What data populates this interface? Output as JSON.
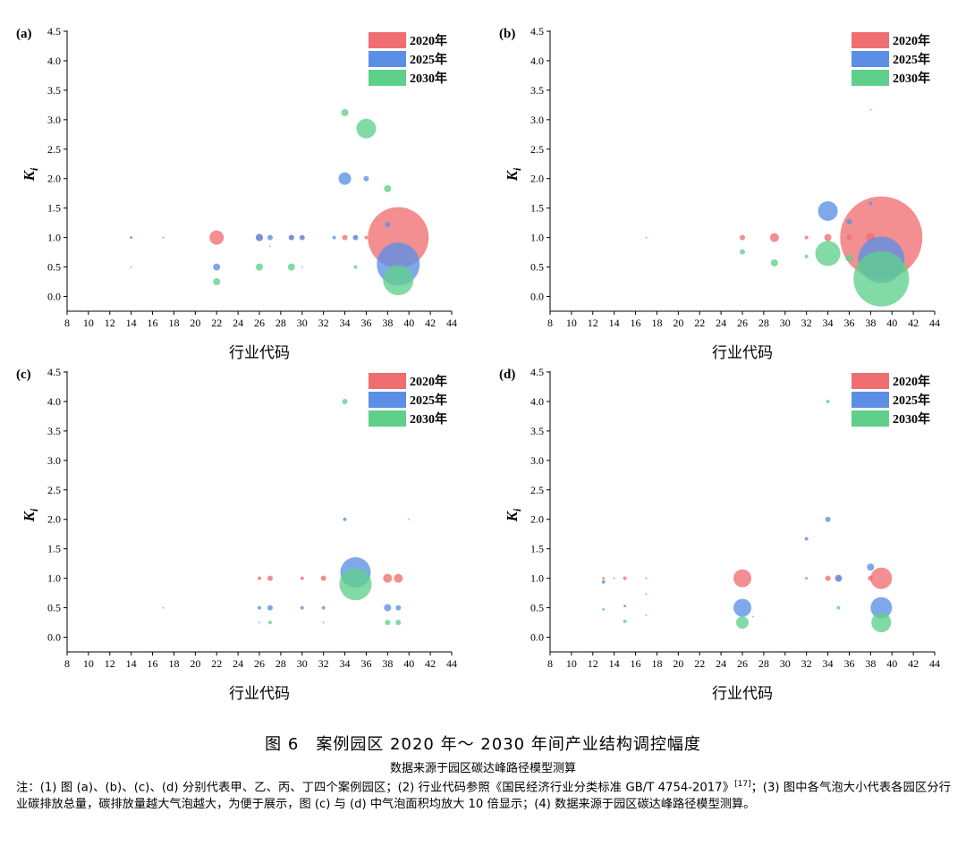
{
  "figure": {
    "title": "图 6　案例园区 2020 年～ 2030 年间产业结构调控幅度",
    "subtitle": "数据来源于园区碳达峰路径模型测算",
    "note_before_ref": "注：(1) 图 (a)、(b)、(c)、(d) 分别代表甲、乙、丙、丁四个案例园区；(2) 行业代码参照《国民经济行业分类标准 GB/T 4754-2017》",
    "note_ref": "[17]",
    "note_after_ref": "；(3) 图中各气泡大小代表各园区分行业碳排放总量，碳排放量越大气泡越大，为便于展示，图 (c) 与 (d) 中气泡面积均放大 10 倍显示；(4) 数据来源于园区碳达峰路径模型测算。"
  },
  "colors": {
    "2020": "#f06e72",
    "2025": "#5b8fe6",
    "2030": "#5fcf8c"
  },
  "chart_data": [
    {
      "type": "scatter",
      "label": "(a)",
      "xlabel": "行业代码",
      "ylabel": "K",
      "ylabel_sub": "i",
      "xlim": [
        8,
        44
      ],
      "ylim": [
        -0.25,
        4.5
      ],
      "xticks": [
        8,
        10,
        12,
        14,
        16,
        18,
        20,
        22,
        24,
        26,
        28,
        30,
        32,
        34,
        36,
        38,
        40,
        42,
        44
      ],
      "yticks": [
        0.0,
        0.5,
        1.0,
        1.5,
        2.0,
        2.5,
        3.0,
        3.5,
        4.0,
        4.5
      ],
      "legend": [
        "2020年",
        "2025年",
        "2030年"
      ],
      "series": [
        {
          "name": "2020年",
          "points": [
            [
              22,
              1.0,
              8
            ],
            [
              26,
              1.0,
              4
            ],
            [
              29,
              1.0,
              3
            ],
            [
              30,
              1.0,
              2
            ],
            [
              34,
              1.0,
              3
            ],
            [
              35,
              1.0,
              2
            ],
            [
              36,
              1.0,
              2
            ],
            [
              39,
              1.0,
              34
            ]
          ]
        },
        {
          "name": "2025年",
          "points": [
            [
              14,
              1.0,
              1.5
            ],
            [
              17,
              1.0,
              1
            ],
            [
              22,
              0.5,
              4
            ],
            [
              26,
              1.0,
              4
            ],
            [
              27,
              1.0,
              3
            ],
            [
              29,
              1.0,
              3
            ],
            [
              30,
              1.0,
              3
            ],
            [
              33,
              1.0,
              2
            ],
            [
              34,
              2.0,
              7
            ],
            [
              35,
              1.0,
              3
            ],
            [
              36,
              2.0,
              3
            ],
            [
              38,
              1.22,
              3
            ],
            [
              39,
              0.55,
              24
            ]
          ]
        },
        {
          "name": "2030年",
          "points": [
            [
              14,
              0.5,
              1
            ],
            [
              22,
              0.25,
              4
            ],
            [
              26,
              0.5,
              4
            ],
            [
              27,
              0.85,
              1
            ],
            [
              29,
              0.5,
              4
            ],
            [
              30,
              0.5,
              1
            ],
            [
              34,
              3.12,
              4
            ],
            [
              35,
              0.5,
              2
            ],
            [
              36,
              2.85,
              11
            ],
            [
              38,
              1.83,
              4
            ],
            [
              39,
              0.28,
              17
            ]
          ]
        }
      ]
    },
    {
      "type": "scatter",
      "label": "(b)",
      "xlabel": "行业代码",
      "ylabel": "K",
      "ylabel_sub": "i",
      "xlim": [
        8,
        44
      ],
      "ylim": [
        -0.25,
        4.5
      ],
      "xticks": [
        8,
        10,
        12,
        14,
        16,
        18,
        20,
        22,
        24,
        26,
        28,
        30,
        32,
        34,
        36,
        38,
        40,
        42,
        44
      ],
      "yticks": [
        0.0,
        0.5,
        1.0,
        1.5,
        2.0,
        2.5,
        3.0,
        3.5,
        4.0,
        4.5
      ],
      "legend": [
        "2020年",
        "2025年",
        "2030年"
      ],
      "series": [
        {
          "name": "2020年",
          "points": [
            [
              26,
              1.0,
              3
            ],
            [
              29,
              1.0,
              5
            ],
            [
              32,
              1.0,
              2
            ],
            [
              34,
              1.0,
              4
            ],
            [
              36,
              1.0,
              3
            ],
            [
              38,
              1.0,
              5
            ],
            [
              39,
              1.0,
              46
            ]
          ]
        },
        {
          "name": "2025年",
          "points": [
            [
              34,
              1.45,
              11
            ],
            [
              36,
              1.27,
              3
            ],
            [
              38,
              1.58,
              2
            ],
            [
              39,
              0.62,
              26
            ]
          ]
        },
        {
          "name": "2030年",
          "points": [
            [
              17,
              1.0,
              1
            ],
            [
              26,
              0.76,
              3
            ],
            [
              29,
              0.57,
              4
            ],
            [
              32,
              0.68,
              2
            ],
            [
              34,
              0.73,
              14
            ],
            [
              36,
              0.65,
              4
            ],
            [
              38,
              3.17,
              1
            ],
            [
              39,
              0.3,
              31
            ]
          ]
        }
      ]
    },
    {
      "type": "scatter",
      "label": "(c)",
      "xlabel": "行业代码",
      "ylabel": "K",
      "ylabel_sub": "i",
      "xlim": [
        8,
        44
      ],
      "ylim": [
        -0.25,
        4.5
      ],
      "xticks": [
        8,
        10,
        12,
        14,
        16,
        18,
        20,
        22,
        24,
        26,
        28,
        30,
        32,
        34,
        36,
        38,
        40,
        42,
        44
      ],
      "yticks": [
        0.0,
        0.5,
        1.0,
        1.5,
        2.0,
        2.5,
        3.0,
        3.5,
        4.0,
        4.5
      ],
      "legend": [
        "2020年",
        "2025年",
        "2030年"
      ],
      "series": [
        {
          "name": "2020年",
          "points": [
            [
              26,
              1.0,
              2
            ],
            [
              27,
              1.0,
              3
            ],
            [
              30,
              1.0,
              2
            ],
            [
              32,
              1.0,
              3
            ],
            [
              38,
              1.0,
              5
            ],
            [
              39,
              1.0,
              5
            ]
          ]
        },
        {
          "name": "2025年",
          "points": [
            [
              26,
              0.5,
              2
            ],
            [
              27,
              0.5,
              3
            ],
            [
              30,
              0.5,
              2
            ],
            [
              32,
              0.5,
              2
            ],
            [
              34,
              2.0,
              2
            ],
            [
              35,
              1.1,
              17
            ],
            [
              38,
              0.5,
              4
            ],
            [
              39,
              0.5,
              3
            ]
          ]
        },
        {
          "name": "2030年",
          "points": [
            [
              17,
              0.5,
              1
            ],
            [
              26,
              0.25,
              1
            ],
            [
              27,
              0.25,
              2
            ],
            [
              32,
              0.25,
              1
            ],
            [
              34,
              4.0,
              3
            ],
            [
              35,
              0.9,
              18
            ],
            [
              38,
              0.25,
              3
            ],
            [
              39,
              0.25,
              3
            ],
            [
              40,
              2.0,
              1
            ]
          ]
        }
      ]
    },
    {
      "type": "scatter",
      "label": "(d)",
      "xlabel": "行业代码",
      "ylabel": "K",
      "ylabel_sub": "i",
      "xlim": [
        8,
        44
      ],
      "ylim": [
        -0.25,
        4.5
      ],
      "xticks": [
        8,
        10,
        12,
        14,
        16,
        18,
        20,
        22,
        24,
        26,
        28,
        30,
        32,
        34,
        36,
        38,
        40,
        42,
        44
      ],
      "yticks": [
        0.0,
        0.5,
        1.0,
        1.5,
        2.0,
        2.5,
        3.0,
        3.5,
        4.0,
        4.5
      ],
      "legend": [
        "2020年",
        "2025年",
        "2030年"
      ],
      "series": [
        {
          "name": "2020年",
          "points": [
            [
              13,
              1.0,
              1.5
            ],
            [
              14,
              1.0,
              1
            ],
            [
              15,
              1.0,
              2
            ],
            [
              17,
              1.0,
              1
            ],
            [
              26,
              1.0,
              10
            ],
            [
              32,
              1.0,
              1.5
            ],
            [
              34,
              1.0,
              3
            ],
            [
              35,
              1.0,
              3
            ],
            [
              38,
              1.0,
              3
            ],
            [
              39,
              1.0,
              12
            ]
          ]
        },
        {
          "name": "2025年",
          "points": [
            [
              13,
              0.94,
              2
            ],
            [
              15,
              0.53,
              1.5
            ],
            [
              17,
              0.73,
              1
            ],
            [
              26,
              0.5,
              10
            ],
            [
              32,
              1.67,
              2
            ],
            [
              34,
              2.0,
              3
            ],
            [
              35,
              1.0,
              4
            ],
            [
              38,
              1.19,
              4
            ],
            [
              39,
              0.5,
              12
            ]
          ]
        },
        {
          "name": "2030年",
          "points": [
            [
              13,
              0.47,
              1.5
            ],
            [
              15,
              0.27,
              2
            ],
            [
              17,
              0.37,
              1
            ],
            [
              26,
              0.25,
              7
            ],
            [
              27,
              0.35,
              1
            ],
            [
              34,
              4.0,
              2
            ],
            [
              35,
              0.5,
              2
            ],
            [
              39,
              0.25,
              11
            ]
          ]
        }
      ]
    }
  ]
}
